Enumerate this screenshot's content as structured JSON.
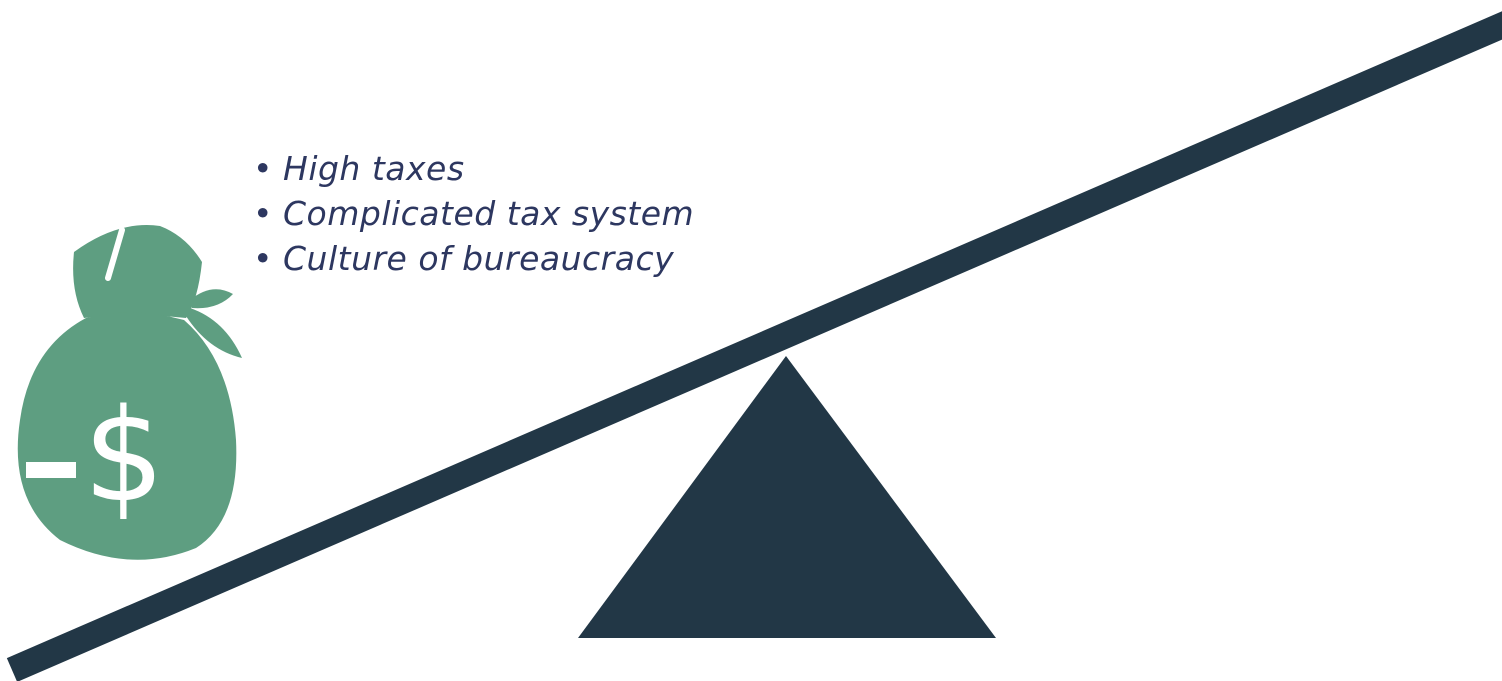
{
  "colors": {
    "text": "#2d3760",
    "beam": "#223746",
    "fulcrum": "#223746",
    "bag": "#5e9e81",
    "bag_accent": "#ffffff"
  },
  "icons": {
    "bag": "money-bag-icon",
    "minus": "minus-icon",
    "currency": "dollar-sign-icon",
    "bullet": "bullet-icon"
  },
  "bag": {
    "symbol": "$"
  },
  "list": {
    "bullet": "•",
    "items": [
      "High taxes",
      "Complicated tax system",
      "Culture of bureaucracy"
    ]
  }
}
